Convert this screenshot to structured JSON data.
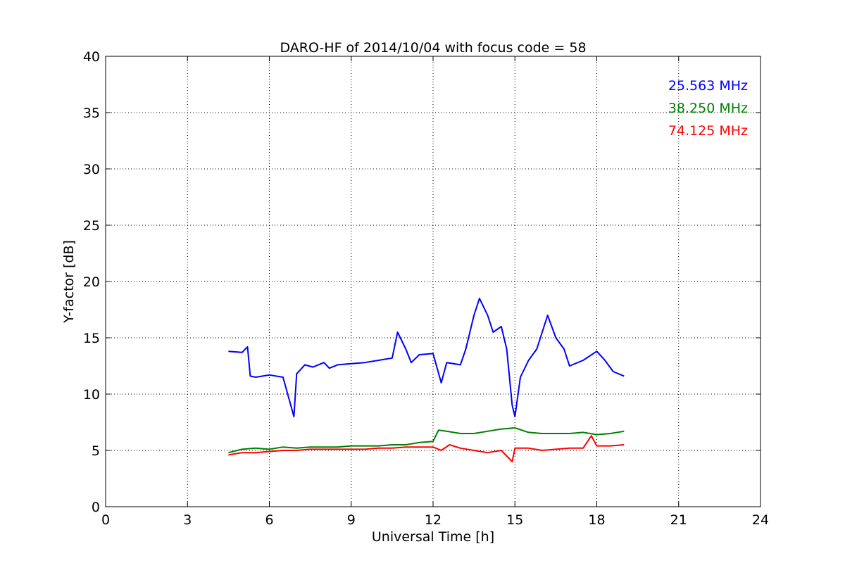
{
  "chart_data": {
    "type": "line",
    "title": "DARO-HF of 2014/10/04 with focus code = 58",
    "xlabel": "Universal Time [h]",
    "ylabel": "Y-factor [dB]",
    "xlim": [
      0,
      24
    ],
    "ylim": [
      0,
      40
    ],
    "xticks": [
      0,
      3,
      6,
      9,
      12,
      15,
      18,
      21,
      24
    ],
    "yticks": [
      0,
      5,
      10,
      15,
      20,
      25,
      30,
      35,
      40
    ],
    "grid": true,
    "legend_position": "top-right",
    "series": [
      {
        "name": "25.563 MHz",
        "color": "#0000ff",
        "x": [
          4.5,
          5.0,
          5.2,
          5.3,
          5.5,
          6.0,
          6.5,
          6.9,
          7.0,
          7.3,
          7.6,
          8.0,
          8.2,
          8.5,
          9.0,
          9.5,
          10.0,
          10.5,
          10.7,
          11.0,
          11.2,
          11.5,
          12.0,
          12.3,
          12.5,
          13.0,
          13.2,
          13.5,
          13.7,
          14.0,
          14.2,
          14.5,
          14.7,
          14.9,
          15.0,
          15.2,
          15.5,
          15.8,
          16.0,
          16.2,
          16.5,
          16.8,
          17.0,
          17.5,
          18.0,
          18.3,
          18.6,
          19.0
        ],
        "y": [
          13.8,
          13.7,
          14.2,
          11.6,
          11.5,
          11.7,
          11.5,
          8.0,
          11.8,
          12.6,
          12.4,
          12.8,
          12.3,
          12.6,
          12.7,
          12.8,
          13.0,
          13.2,
          15.5,
          14.0,
          12.8,
          13.5,
          13.6,
          11.0,
          12.8,
          12.6,
          14.0,
          17.0,
          18.5,
          17.0,
          15.5,
          16.0,
          14.0,
          9.0,
          8.0,
          11.5,
          13.0,
          14.0,
          15.5,
          17.0,
          15.0,
          14.0,
          12.5,
          13.0,
          13.8,
          13.0,
          12.0,
          11.6
        ]
      },
      {
        "name": "38.250 MHz",
        "color": "#008000",
        "x": [
          4.5,
          5.0,
          5.5,
          6.0,
          6.5,
          7.0,
          7.5,
          8.0,
          8.5,
          9.0,
          9.5,
          10.0,
          10.5,
          11.0,
          11.5,
          12.0,
          12.2,
          12.5,
          13.0,
          13.5,
          14.0,
          14.5,
          15.0,
          15.5,
          16.0,
          16.5,
          17.0,
          17.5,
          18.0,
          18.5,
          19.0
        ],
        "y": [
          4.8,
          5.1,
          5.2,
          5.1,
          5.3,
          5.2,
          5.3,
          5.3,
          5.3,
          5.4,
          5.4,
          5.4,
          5.5,
          5.5,
          5.7,
          5.8,
          6.8,
          6.7,
          6.5,
          6.5,
          6.7,
          6.9,
          7.0,
          6.6,
          6.5,
          6.5,
          6.5,
          6.6,
          6.4,
          6.5,
          6.7
        ]
      },
      {
        "name": "74.125 MHz",
        "color": "#ff0000",
        "x": [
          4.5,
          5.0,
          5.5,
          6.0,
          6.5,
          7.0,
          7.5,
          8.0,
          8.5,
          9.0,
          9.5,
          10.0,
          10.5,
          11.0,
          11.5,
          12.0,
          12.3,
          12.6,
          13.0,
          13.5,
          14.0,
          14.5,
          14.9,
          15.0,
          15.5,
          16.0,
          16.5,
          17.0,
          17.5,
          17.8,
          18.0,
          18.5,
          19.0
        ],
        "y": [
          4.6,
          4.8,
          4.8,
          4.9,
          5.0,
          5.0,
          5.1,
          5.1,
          5.1,
          5.1,
          5.1,
          5.2,
          5.2,
          5.3,
          5.3,
          5.3,
          5.0,
          5.5,
          5.2,
          5.0,
          4.8,
          5.0,
          4.0,
          5.2,
          5.2,
          5.0,
          5.1,
          5.2,
          5.2,
          6.3,
          5.4,
          5.4,
          5.5
        ]
      }
    ]
  }
}
